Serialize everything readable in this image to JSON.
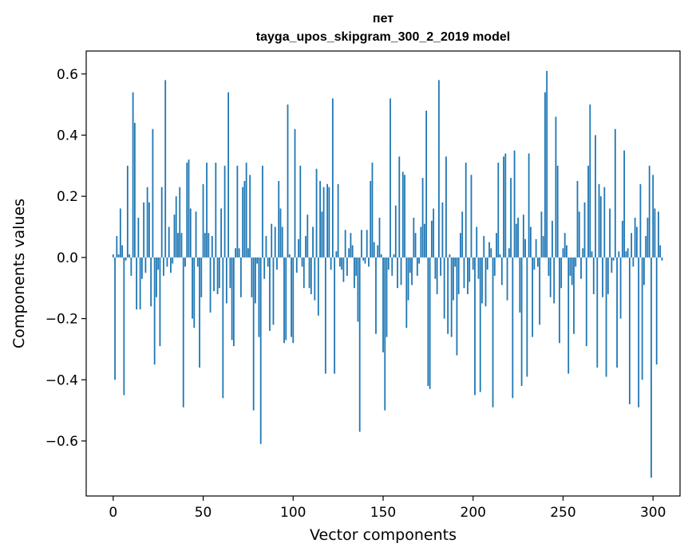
{
  "chart_data": {
    "type": "bar",
    "title": "пет",
    "subtitle": "tayga_upos_skipgram_300_2_2019 model",
    "xlabel": "Vector components",
    "ylabel": "Components values",
    "xlim": [
      -15,
      315
    ],
    "ylim": [
      -0.78,
      0.675
    ],
    "xticks": [
      0,
      50,
      100,
      150,
      200,
      250,
      300
    ],
    "xtick_labels": [
      "0",
      "50",
      "100",
      "150",
      "200",
      "250",
      "300"
    ],
    "yticks": [
      -0.6,
      -0.4,
      -0.2,
      0.0,
      0.2,
      0.4,
      0.6
    ],
    "ytick_labels": [
      "−0.6",
      "−0.4",
      "−0.2",
      "0.0",
      "0.2",
      "0.4",
      "0.6"
    ],
    "bar_color": "#1f77b4",
    "grid": false,
    "legend": null,
    "values": [
      0.01,
      -0.4,
      0.07,
      0.01,
      0.16,
      0.04,
      -0.45,
      -0.01,
      0.3,
      0.01,
      -0.06,
      0.54,
      0.44,
      -0.17,
      0.13,
      -0.17,
      -0.07,
      0.18,
      -0.05,
      0.23,
      0.18,
      -0.16,
      0.42,
      -0.35,
      -0.13,
      -0.04,
      -0.29,
      0.23,
      -0.06,
      0.58,
      -0.03,
      0.1,
      -0.05,
      -0.02,
      0.14,
      0.2,
      0.08,
      0.23,
      0.08,
      -0.49,
      -0.03,
      0.31,
      0.32,
      0.16,
      -0.2,
      -0.23,
      0.15,
      -0.03,
      -0.36,
      -0.13,
      0.24,
      0.08,
      0.31,
      0.08,
      -0.18,
      0.07,
      -0.11,
      0.31,
      -0.12,
      -0.1,
      0.16,
      -0.46,
      0.3,
      -0.15,
      0.54,
      -0.1,
      -0.27,
      -0.29,
      0.03,
      0.3,
      0.03,
      -0.13,
      0.23,
      0.25,
      0.31,
      0.03,
      0.27,
      -0.13,
      -0.5,
      -0.15,
      -0.02,
      -0.26,
      -0.61,
      0.3,
      -0.07,
      0.07,
      -0.03,
      -0.24,
      0.11,
      -0.22,
      0.1,
      -0.04,
      0.25,
      0.16,
      0.1,
      -0.28,
      -0.27,
      0.5,
      0.01,
      -0.26,
      -0.28,
      0.42,
      -0.05,
      0.06,
      0.3,
      -0.03,
      -0.1,
      0.07,
      0.14,
      -0.1,
      -0.12,
      0.1,
      -0.14,
      0.29,
      -0.19,
      0.25,
      0.15,
      0.23,
      -0.38,
      0.24,
      0.23,
      -0.04,
      0.52,
      -0.38,
      0.02,
      0.24,
      -0.03,
      -0.04,
      -0.08,
      0.09,
      -0.06,
      0.03,
      0.08,
      0.04,
      -0.1,
      -0.06,
      -0.21,
      -0.57,
      0.09,
      -0.01,
      -0.02,
      0.09,
      -0.03,
      0.25,
      0.31,
      0.05,
      -0.25,
      0.04,
      0.13,
      0.01,
      -0.31,
      -0.5,
      -0.26,
      -0.04,
      0.52,
      -0.06,
      0.01,
      0.17,
      -0.1,
      0.33,
      -0.09,
      0.28,
      0.27,
      -0.23,
      -0.14,
      -0.05,
      -0.09,
      0.13,
      0.08,
      -0.06,
      -0.02,
      0.1,
      0.26,
      0.11,
      0.48,
      -0.42,
      -0.43,
      0.12,
      0.16,
      -0.07,
      -0.12,
      0.58,
      -0.06,
      0.18,
      -0.2,
      0.33,
      -0.25,
      0.01,
      -0.26,
      -0.14,
      -0.03,
      -0.32,
      -0.12,
      0.08,
      0.15,
      -0.1,
      0.31,
      -0.12,
      -0.08,
      0.27,
      -0.04,
      -0.45,
      0.1,
      -0.07,
      -0.44,
      -0.15,
      0.07,
      -0.16,
      -0.04,
      0.05,
      0.03,
      -0.49,
      -0.06,
      0.08,
      0.31,
      0.01,
      -0.09,
      0.33,
      0.34,
      -0.14,
      0.03,
      0.26,
      -0.46,
      0.35,
      0.11,
      0.13,
      -0.18,
      -0.42,
      0.14,
      0.06,
      -0.39,
      0.34,
      0.1,
      -0.26,
      -0.04,
      0.06,
      -0.03,
      -0.22,
      0.15,
      0.07,
      0.54,
      0.61,
      -0.06,
      -0.13,
      0.12,
      -0.15,
      0.46,
      0.3,
      -0.28,
      -0.1,
      0.03,
      0.08,
      0.04,
      -0.38,
      -0.06,
      -0.09,
      -0.25,
      -0.03,
      0.25,
      0.15,
      -0.07,
      0.03,
      0.18,
      -0.29,
      0.3,
      0.5,
      0.02,
      -0.12,
      0.4,
      -0.36,
      0.24,
      0.2,
      -0.13,
      0.23,
      -0.39,
      -0.12,
      0.16,
      -0.05,
      -0.01,
      0.42,
      -0.36,
      0.02,
      -0.2,
      0.12,
      0.35,
      0.02,
      0.03,
      -0.48,
      0.08,
      -0.03,
      0.13,
      0.1,
      -0.49,
      0.24,
      -0.4,
      -0.09,
      0.07,
      0.13,
      0.3,
      -0.72,
      0.27,
      0.16,
      -0.35,
      0.15,
      0.04,
      -0.01
    ]
  }
}
